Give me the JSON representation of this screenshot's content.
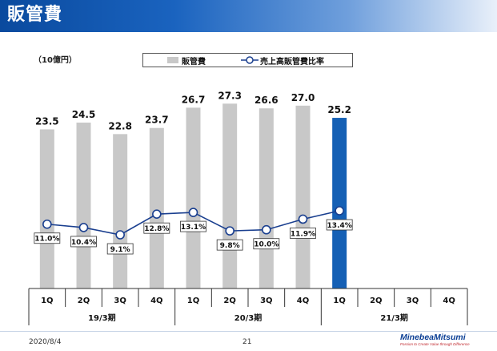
{
  "header": {
    "title": "販管費"
  },
  "unit_label": "（10億円）",
  "legend": {
    "bar_label": "販管費",
    "line_label": "売上高販管費比率"
  },
  "chart_data": {
    "type": "bar",
    "categories": [
      "1Q",
      "2Q",
      "3Q",
      "4Q",
      "1Q",
      "2Q",
      "3Q",
      "4Q",
      "1Q",
      "2Q",
      "3Q",
      "4Q"
    ],
    "groups": [
      {
        "label": "19/3期",
        "span": 4
      },
      {
        "label": "20/3期",
        "span": 4
      },
      {
        "label": "21/3期",
        "span": 4
      }
    ],
    "series": [
      {
        "name": "販管費",
        "kind": "bar",
        "values": [
          23.5,
          24.5,
          22.8,
          23.7,
          26.7,
          27.3,
          26.6,
          27.0,
          25.2,
          null,
          null,
          null
        ],
        "labels": [
          "23.5",
          "24.5",
          "22.8",
          "23.7",
          "26.7",
          "27.3",
          "26.6",
          "27.0",
          "25.2",
          "",
          "",
          ""
        ],
        "color": "#c8c8c8",
        "highlight_color": "#1560b5",
        "highlight_index": 8
      },
      {
        "name": "売上高販管費比率",
        "kind": "line",
        "values": [
          11.0,
          10.4,
          9.1,
          12.8,
          13.1,
          9.8,
          10.0,
          11.9,
          13.4,
          null,
          null,
          null
        ],
        "labels": [
          "11.0%",
          "10.4%",
          "9.1%",
          "12.8%",
          "13.1%",
          "9.8%",
          "10.0%",
          "11.9%",
          "13.4%",
          "",
          "",
          ""
        ],
        "color": "#1a3f8f"
      }
    ],
    "grid": false,
    "legend_position": "top"
  },
  "footer": {
    "date": "2020/8/4",
    "page": "21"
  },
  "logo": {
    "name": "MinebeaMitsumi",
    "tagline": "Passion to Create Value through Difference"
  }
}
